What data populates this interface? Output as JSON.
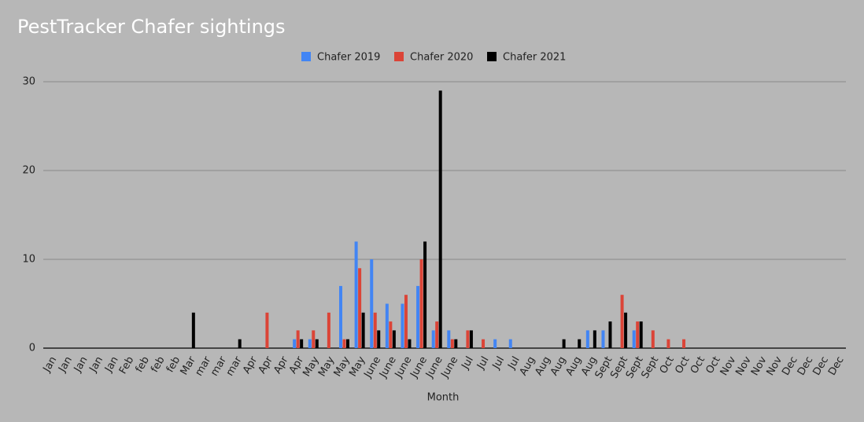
{
  "chart_data": {
    "type": "bar",
    "title": "PestTracker Chafer sightings",
    "x_label": "Month",
    "categories": [
      "Jan",
      "Jan",
      "Jan",
      "Jan",
      "Jan",
      "Feb",
      "feb",
      "feb",
      "feb",
      "Mar",
      "mar",
      "mar",
      "mar",
      "Apr",
      "Apr",
      "Apr",
      "Apr",
      "May",
      "May",
      "May",
      "May",
      "June",
      "June",
      "June",
      "June",
      "June",
      "June",
      "Jul",
      "Jul",
      "Jul",
      "Jul",
      "Aug",
      "Aug",
      "Aug",
      "Aug",
      "Aug",
      "Sept",
      "Sept",
      "Sept",
      "Sept",
      "Oct",
      "Oct",
      "Oct",
      "Oct",
      "Nov",
      "Nov",
      "Nov",
      "Nov",
      "Dec",
      "Dec",
      "Dec",
      "Dec"
    ],
    "series": [
      {
        "name": "Chafer 2019",
        "color": "#4285f4",
        "values": [
          0,
          0,
          0,
          0,
          0,
          0,
          0,
          0,
          0,
          0,
          0,
          0,
          0,
          0,
          0,
          0,
          1,
          1,
          0,
          7,
          12,
          10,
          5,
          5,
          7,
          2,
          2,
          0,
          0,
          1,
          1,
          0,
          0,
          0,
          0,
          2,
          2,
          0,
          2,
          0,
          0,
          0,
          0,
          0,
          0,
          0,
          0,
          0,
          0,
          0,
          0,
          0
        ]
      },
      {
        "name": "Chafer 2020",
        "color": "#db4437",
        "values": [
          0,
          0,
          0,
          0,
          0,
          0,
          0,
          0,
          0,
          0,
          0,
          0,
          0,
          0,
          4,
          0,
          2,
          2,
          4,
          1,
          9,
          4,
          3,
          6,
          10,
          3,
          1,
          2,
          1,
          0,
          0,
          0,
          0,
          0,
          0,
          0,
          0,
          6,
          3,
          2,
          1,
          1,
          0,
          0,
          0,
          0,
          0,
          0,
          0,
          0,
          0,
          0
        ]
      },
      {
        "name": "Chafer 2021",
        "color": "#000000",
        "values": [
          0,
          0,
          0,
          0,
          0,
          0,
          0,
          0,
          0,
          4,
          0,
          0,
          1,
          0,
          0,
          0,
          1,
          1,
          0,
          1,
          4,
          2,
          2,
          1,
          12,
          29,
          1,
          2,
          0,
          0,
          0,
          0,
          0,
          1,
          1,
          2,
          3,
          4,
          3,
          0,
          0,
          0,
          0,
          0,
          0,
          0,
          0,
          0,
          0,
          0,
          0,
          0
        ]
      }
    ],
    "ylim": [
      0,
      30
    ],
    "yticks": [
      0,
      10,
      20,
      30
    ],
    "grid": true
  }
}
